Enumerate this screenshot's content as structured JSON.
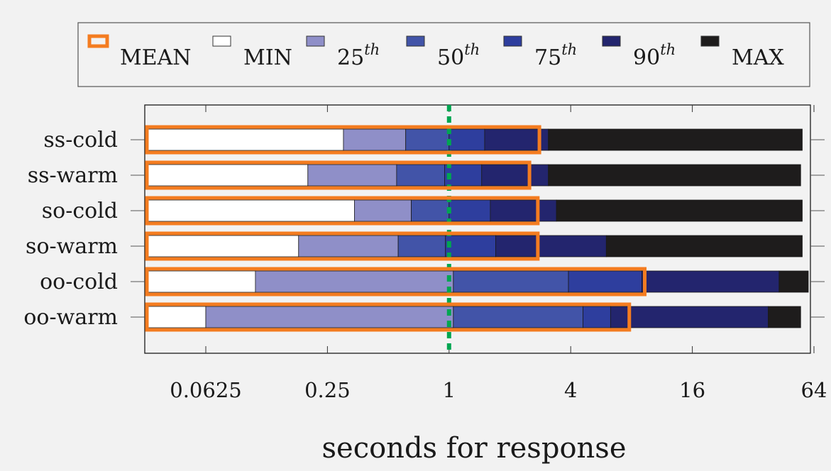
{
  "chart_data": {
    "type": "bar",
    "orientation": "horizontal",
    "stacked": true,
    "x_scale": "log2",
    "xlim": [
      0.035,
      64
    ],
    "xlabel": "seconds for response",
    "ylabel": "",
    "title": "",
    "x_ticks": [
      0.0625,
      0.25,
      1,
      4,
      16,
      64
    ],
    "x_tick_labels": [
      "0.0625",
      "0.25",
      "1",
      "4",
      "16",
      "64"
    ],
    "reference_line": {
      "x": 1,
      "color": "#00a651",
      "style": "dashed"
    },
    "legend_position": "top",
    "legend": [
      {
        "key": "mean",
        "label": "MEAN",
        "sup": ""
      },
      {
        "key": "min",
        "label": "MIN",
        "sup": ""
      },
      {
        "key": "p25",
        "label": "25",
        "sup": "th"
      },
      {
        "key": "p50",
        "label": "50",
        "sup": "th"
      },
      {
        "key": "p75",
        "label": "75",
        "sup": "th"
      },
      {
        "key": "p90",
        "label": "90",
        "sup": "th"
      },
      {
        "key": "max",
        "label": "MAX",
        "sup": ""
      }
    ],
    "colors": {
      "mean": "#f47c20",
      "min": "#ffffff",
      "p25": "#8f8fc8",
      "p50": "#4254a8",
      "p75": "#2e3e9e",
      "p90": "#23256e",
      "max": "#1e1c1c"
    },
    "categories": [
      "ss-cold",
      "ss-warm",
      "so-cold",
      "so-warm",
      "oo-cold",
      "oo-warm"
    ],
    "series": [
      {
        "key": "min",
        "values": [
          0.3,
          0.2,
          0.34,
          0.18,
          0.11,
          0.0625
        ]
      },
      {
        "key": "p25",
        "values": [
          0.61,
          0.55,
          0.65,
          0.56,
          1.05,
          1.05
        ]
      },
      {
        "key": "p50",
        "values": [
          1.0,
          0.95,
          1.0,
          0.96,
          3.9,
          4.6
        ]
      },
      {
        "key": "p75",
        "values": [
          1.5,
          1.45,
          1.6,
          1.7,
          9.0,
          6.3
        ]
      },
      {
        "key": "p90",
        "values": [
          3.1,
          3.1,
          3.4,
          6.0,
          43,
          38
        ]
      },
      {
        "key": "max",
        "values": [
          56,
          55,
          56,
          56,
          60,
          55
        ]
      },
      {
        "key": "mean",
        "values": [
          2.8,
          2.5,
          2.75,
          2.75,
          9.3,
          7.8
        ]
      }
    ],
    "grid": false
  }
}
